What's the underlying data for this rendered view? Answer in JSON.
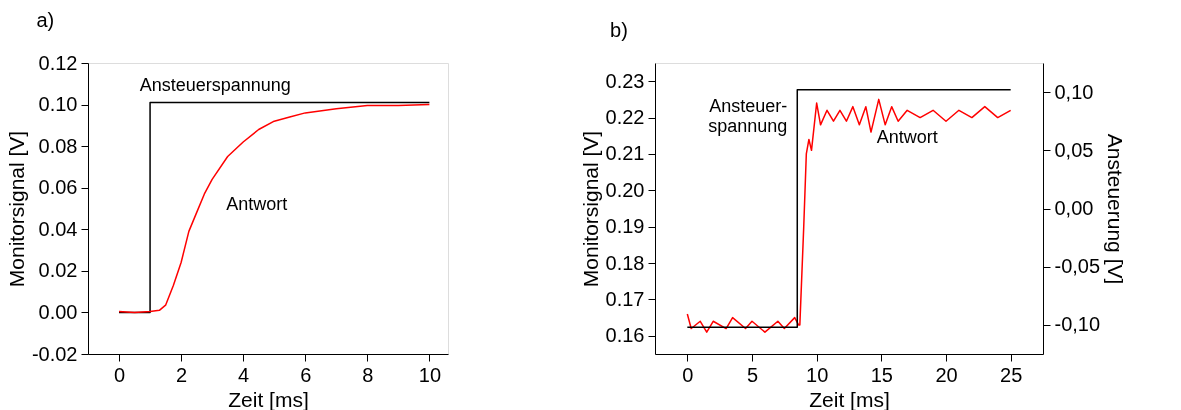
{
  "chart_data": [
    {
      "type": "line",
      "title": "a)",
      "xlabel": "Zeit [ms]",
      "ylabel": "Monitorsignal [V]",
      "xlim": [
        -1,
        10.6
      ],
      "ylim": [
        -0.02,
        0.12
      ],
      "xticks": [
        0,
        2,
        4,
        6,
        8,
        10
      ],
      "yticks": [
        {
          "value": -0.02,
          "label": "-0.02"
        },
        {
          "value": 0,
          "label": "0.00"
        },
        {
          "value": 0.02,
          "label": "0.02"
        },
        {
          "value": 0.04,
          "label": "0.04"
        },
        {
          "value": 0.06,
          "label": "0.06"
        },
        {
          "value": 0.08,
          "label": "0.08"
        },
        {
          "value": 0.1,
          "label": "0.10"
        },
        {
          "value": 0.12,
          "label": "0.12"
        }
      ],
      "grid": false,
      "series": [
        {
          "color": "#000000",
          "x": [
            0,
            1,
            1,
            10
          ],
          "values": [
            0,
            0,
            0.101,
            0.101
          ]
        },
        {
          "color": "#ff0000",
          "x": [
            0,
            0.5,
            1,
            1.3,
            1.5,
            1.75,
            2,
            2.25,
            2.5,
            2.75,
            3,
            3.5,
            4,
            4.5,
            5,
            5.5,
            6,
            7,
            8,
            9,
            10
          ],
          "values": [
            0.0005,
            0,
            0.0005,
            0.001,
            0.0035,
            0.013,
            0.024,
            0.039,
            0.048,
            0.057,
            0.064,
            0.075,
            0.082,
            0.088,
            0.092,
            0.094,
            0.096,
            0.098,
            0.0995,
            0.0995,
            0.1
          ]
        }
      ],
      "annotations": [
        {
          "text": "Ansteuerspannung",
          "x": 3.1,
          "y": 0.101
        },
        {
          "text": "Antwort",
          "x": 3,
          "y": 0.064
        }
      ]
    },
    {
      "type": "line",
      "title": "b)",
      "xlabel": "Zeit [ms]",
      "ylabel": "Monitorsignal [V]",
      "y2label": "Ansteuerung [V]",
      "xlim": [
        -2.5,
        27.5
      ],
      "ylim": [
        0.155,
        0.235
      ],
      "y2lim": [
        -0.125,
        0.125
      ],
      "xticks": [
        0,
        5,
        10,
        15,
        20,
        25
      ],
      "yticks": [
        {
          "value": 0.16,
          "label": "0.16"
        },
        {
          "value": 0.17,
          "label": "0.17"
        },
        {
          "value": 0.18,
          "label": "0.18"
        },
        {
          "value": 0.19,
          "label": "0.19"
        },
        {
          "value": 0.2,
          "label": "0.20"
        },
        {
          "value": 0.21,
          "label": "0.21"
        },
        {
          "value": 0.22,
          "label": "0.22"
        },
        {
          "value": 0.23,
          "label": "0.23"
        }
      ],
      "y2ticks": [
        {
          "value": -0.1,
          "label": "-0,10"
        },
        {
          "value": -0.05,
          "label": "-0,05"
        },
        {
          "value": 0,
          "label": "0,00"
        },
        {
          "value": 0.05,
          "label": "0,05"
        },
        {
          "value": 0.1,
          "label": "0,10"
        }
      ],
      "grid": false,
      "series": [
        {
          "color": "#ff0000",
          "x": [
            0,
            0.3,
            1,
            1.5,
            2,
            3,
            3.5,
            4.5,
            5,
            6,
            7,
            7.5,
            8.3,
            8.6,
            8.7,
            9.0,
            9.2,
            9.4,
            9.6,
            10,
            10.3,
            10.8,
            11.3,
            11.8,
            12.3,
            12.8,
            13.3,
            13.8,
            14.2,
            14.8,
            15.3,
            15.8,
            16.3,
            17,
            18,
            19,
            20,
            21,
            22,
            23,
            24,
            25
          ],
          "values": [
            0.166,
            0.162,
            0.164,
            0.161,
            0.164,
            0.162,
            0.165,
            0.162,
            0.164,
            0.161,
            0.164,
            0.162,
            0.165,
            0.163,
            0.163,
            0.19,
            0.21,
            0.214,
            0.211,
            0.224,
            0.218,
            0.222,
            0.219,
            0.222,
            0.219,
            0.223,
            0.218,
            0.223,
            0.216,
            0.225,
            0.218,
            0.223,
            0.219,
            0.222,
            0.22,
            0.222,
            0.219,
            0.222,
            0.22,
            0.223,
            0.22,
            0.222
          ]
        },
        {
          "color": "#000000",
          "axis": "y2",
          "x": [
            0,
            8.5,
            8.5,
            25
          ],
          "values": [
            -0.102,
            -0.102,
            0.102,
            0.102
          ]
        }
      ],
      "annotations": [
        {
          "text": "Ansteuer-\nspannung",
          "x": 8.5,
          "y": 0.223
        },
        {
          "text": "Antwort",
          "x": 17,
          "y": 0.222
        }
      ]
    }
  ]
}
